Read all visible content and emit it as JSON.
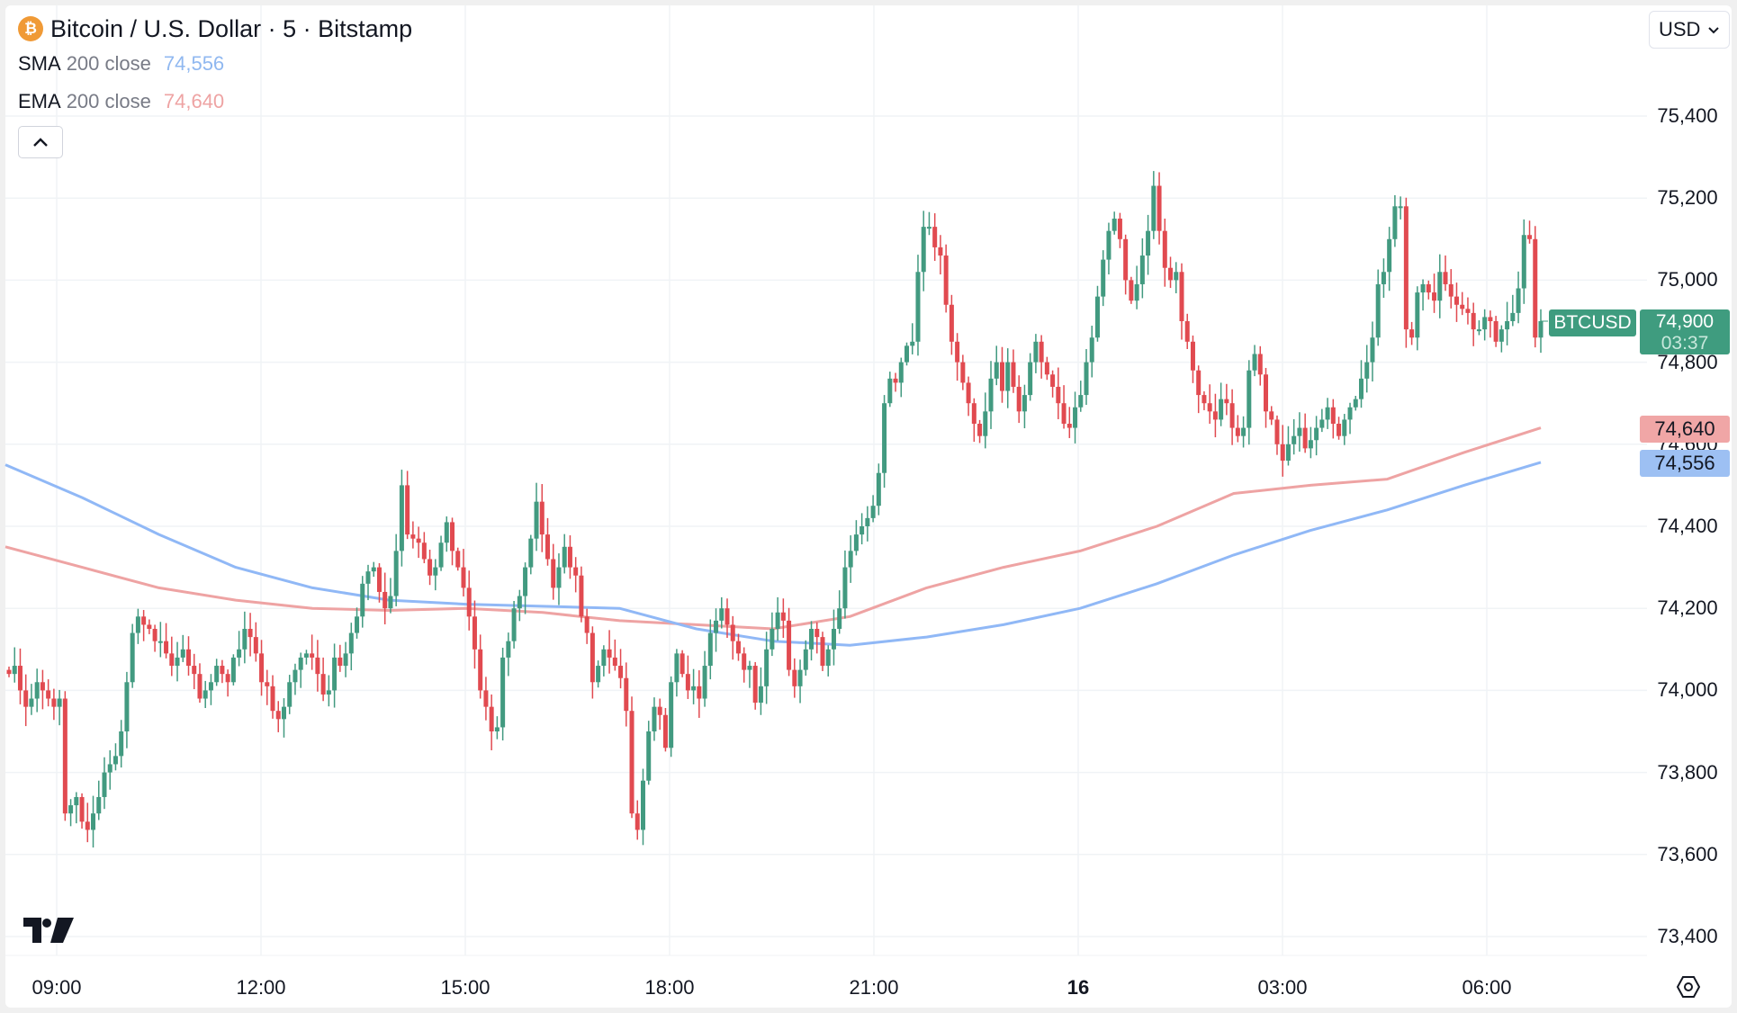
{
  "header": {
    "title": "Bitcoin / U.S. Dollar · 5 · Bitstamp",
    "coin_icon": "bitcoin-icon",
    "currency_selector": "USD"
  },
  "indicators": [
    {
      "name": "SMA",
      "params": "200 close",
      "value": "74,556",
      "color": "#90b8f0"
    },
    {
      "name": "EMA",
      "params": "200 close",
      "value": "74,640",
      "color": "#eea3a3"
    }
  ],
  "price_tags": {
    "symbol": "BTCUSD",
    "last_price": "74,900",
    "countdown": "03:37",
    "ema_value": "74,640",
    "sma_value": "74,556"
  },
  "colors": {
    "up": "#429a80",
    "down": "#e14a50",
    "sma": "#90b8f6",
    "ema": "#eea3a3",
    "grid": "#f0f3f6",
    "last_tag": "#3f9c7f",
    "ema_tag": "#f0a6a6",
    "sma_tag": "#9dc0f3"
  },
  "chart_data": {
    "type": "candlestick",
    "title": "Bitcoin / U.S. Dollar · 5 · Bitstamp",
    "interval": "5",
    "ylabel": "USD",
    "ylim": [
      73350,
      75500
    ],
    "y_ticks": [
      "75,400",
      "75,200",
      "75,000",
      "74,800",
      "74,600",
      "74,400",
      "74,200",
      "74,000",
      "73,800",
      "73,600",
      "73,400"
    ],
    "x_ticks": [
      {
        "label": "09:00",
        "bold": false
      },
      {
        "label": "12:00",
        "bold": false
      },
      {
        "label": "15:00",
        "bold": false
      },
      {
        "label": "18:00",
        "bold": false
      },
      {
        "label": "21:00",
        "bold": false
      },
      {
        "label": "16",
        "bold": true
      },
      {
        "label": "03:00",
        "bold": false
      },
      {
        "label": "06:00",
        "bold": false
      }
    ],
    "grid": true,
    "legend": [
      "SMA 200 close 74,556",
      "EMA 200 close 74,640"
    ],
    "last_price": 74900,
    "closes": [
      74040,
      74060,
      74000,
      73960,
      73980,
      74020,
      74000,
      73980,
      73960,
      73980,
      73700,
      73720,
      73740,
      73680,
      73660,
      73700,
      73740,
      73800,
      73820,
      73840,
      73900,
      74020,
      74140,
      74180,
      74160,
      74150,
      74120,
      74120,
      74090,
      74060,
      74080,
      74100,
      74060,
      74040,
      73980,
      74000,
      74020,
      74060,
      74040,
      74020,
      74080,
      74100,
      74150,
      74130,
      74090,
      74020,
      74010,
      73950,
      73930,
      73960,
      74020,
      74050,
      74080,
      74090,
      74080,
      74040,
      73990,
      74000,
      74080,
      74060,
      74090,
      74140,
      74180,
      74260,
      74290,
      74300,
      74240,
      74200,
      74230,
      74340,
      74500,
      74380,
      74370,
      74360,
      74320,
      74280,
      74300,
      74360,
      74410,
      74340,
      74300,
      74250,
      74180,
      74100,
      74000,
      73960,
      73900,
      73910,
      74080,
      74120,
      74200,
      74230,
      74300,
      74370,
      74460,
      74380,
      74320,
      74250,
      74300,
      74350,
      74300,
      74280,
      74180,
      74140,
      74020,
      74060,
      74100,
      74080,
      74060,
      74030,
      73950,
      73700,
      73660,
      73780,
      73900,
      73960,
      73940,
      73860,
      74020,
      74090,
      74040,
      74000,
      74010,
      73980,
      74060,
      74140,
      74170,
      74200,
      74160,
      74120,
      74090,
      74050,
      74060,
      73970,
      74010,
      74100,
      74150,
      74190,
      74170,
      74050,
      74010,
      74050,
      74100,
      74150,
      74130,
      74060,
      74100,
      74150,
      74200,
      74300,
      74340,
      74380,
      74400,
      74420,
      74450,
      74530,
      74700,
      74760,
      74750,
      74800,
      74840,
      74850,
      75020,
      75130,
      75130,
      75080,
      75060,
      74940,
      74850,
      74800,
      74750,
      74700,
      74650,
      74620,
      74680,
      74760,
      74800,
      74730,
      74800,
      74740,
      74680,
      74720,
      74800,
      74850,
      74800,
      74770,
      74740,
      74700,
      74650,
      74640,
      74690,
      74720,
      74800,
      74860,
      74960,
      75050,
      75120,
      75150,
      75100,
      75000,
      74950,
      74990,
      75060,
      75120,
      75230,
      75120,
      75030,
      75000,
      75020,
      74900,
      74850,
      74780,
      74720,
      74700,
      74680,
      74660,
      74710,
      74700,
      74640,
      74620,
      74640,
      74780,
      74820,
      74770,
      74680,
      74660,
      74600,
      74560,
      74600,
      74620,
      74640,
      74590,
      74610,
      74640,
      74660,
      74690,
      74650,
      74620,
      74660,
      74690,
      74710,
      74760,
      74800,
      74860,
      74990,
      75020,
      75100,
      75180,
      75180,
      74880,
      74860,
      74970,
      74990,
      74970,
      74950,
      75020,
      74990,
      74960,
      74940,
      74930,
      74920,
      74880,
      74880,
      74910,
      74900,
      74850,
      74880,
      74900,
      74920,
      74980,
      75110,
      75100,
      74860,
      74900
    ],
    "sma_200": [
      74550,
      74470,
      74380,
      74300,
      74250,
      74220,
      74210,
      74205,
      74200,
      74150,
      74120,
      74110,
      74130,
      74160,
      74200,
      74260,
      74330,
      74390,
      74440,
      74500,
      74556
    ],
    "ema_200": [
      74350,
      74300,
      74250,
      74220,
      74200,
      74195,
      74200,
      74190,
      74170,
      74160,
      74150,
      74180,
      74250,
      74300,
      74340,
      74400,
      74480,
      74500,
      74515,
      74580,
      74640
    ]
  }
}
